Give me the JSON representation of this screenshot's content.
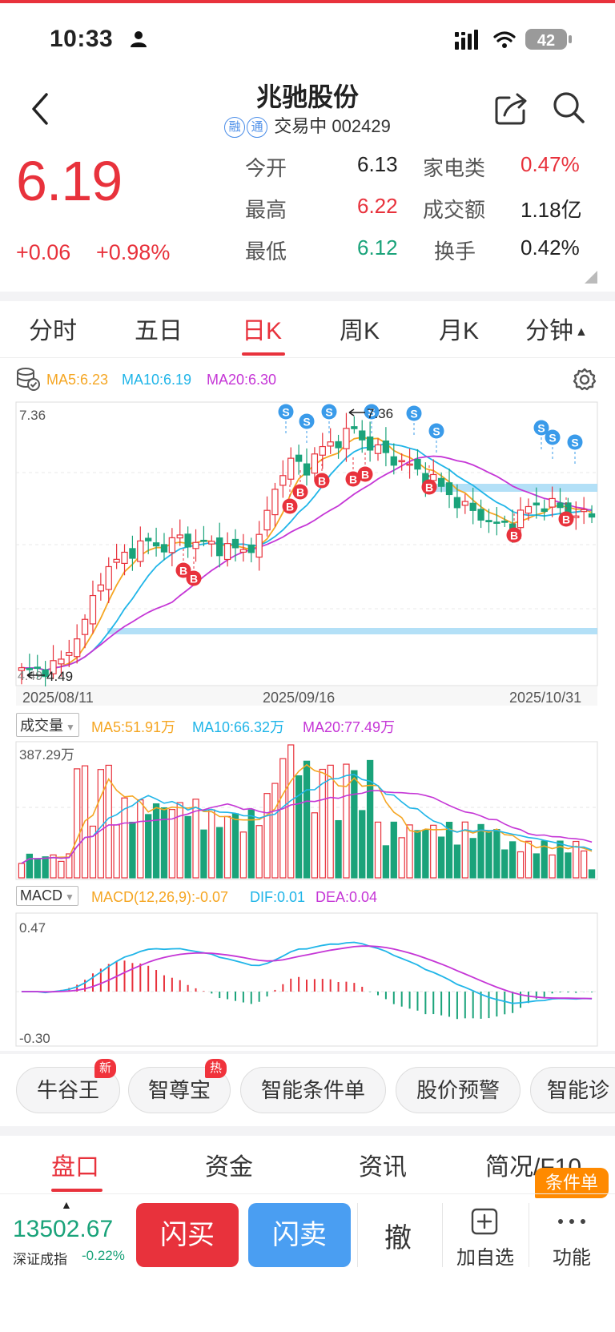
{
  "status_bar": {
    "time": "10:33",
    "battery": "42"
  },
  "header": {
    "title": "兆驰股份",
    "badge_rong": "融",
    "badge_tong": "通",
    "subtitle": "交易中 002429"
  },
  "quote": {
    "price": "6.19",
    "change": "+0.06",
    "change_pct": "+0.98%",
    "open_label": "今开",
    "open": "6.13",
    "high_label": "最高",
    "high": "6.22",
    "low_label": "最低",
    "low": "6.12",
    "sector_label": "家电类",
    "sector_pct": "0.47%",
    "turnover_label": "成交额",
    "turnover": "1.18亿",
    "turnover_rate_label": "换手",
    "turnover_rate": "0.42%"
  },
  "period_tabs": [
    "分时",
    "五日",
    "日K",
    "周K",
    "月K",
    "分钟"
  ],
  "kline": {
    "ma5": "MA5:6.23",
    "ma10": "MA10:6.19",
    "ma20": "MA20:6.30",
    "y_top": "7.36",
    "high_mark": "7.36",
    "low_mark": "4.49",
    "low_left": "4.49",
    "dates": [
      "2025/08/11",
      "2025/09/16",
      "2025/10/31"
    ]
  },
  "volume": {
    "selector": "成交量",
    "ma5": "MA5:51.91万",
    "ma10": "MA10:66.32万",
    "ma20": "MA20:77.49万",
    "y_top": "387.29万"
  },
  "macd": {
    "selector": "MACD",
    "params": "MACD(12,26,9):-0.07",
    "dif": "DIF:0.01",
    "dea": "DEA:0.04",
    "y_top": "0.47",
    "y_bottom": "-0.30"
  },
  "features": {
    "items": [
      "牛谷王",
      "智尊宝",
      "智能条件单",
      "股价预警",
      "智能诊"
    ],
    "tag_new": "新",
    "tag_hot": "热"
  },
  "bottom_tabs": [
    "盘口",
    "资金",
    "资讯",
    "简况/F10"
  ],
  "condition_badge": "条件单",
  "index": {
    "value": "13502.67",
    "name": "深证成指",
    "pct": "-0.22%"
  },
  "actions": {
    "buy": "闪买",
    "sell": "闪卖",
    "cancel": "撤",
    "add": "加自选",
    "more": "功能"
  },
  "colors": {
    "up": "#e8323c",
    "down": "#1aa37a",
    "ma5": "#f5a623",
    "ma10": "#20b5e8",
    "ma20": "#c536d6",
    "accent": "#4a9ef2"
  }
}
